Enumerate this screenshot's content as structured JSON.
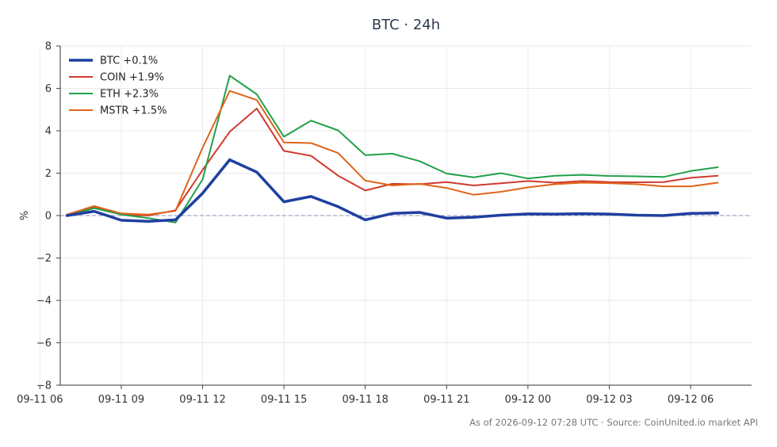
{
  "chart_data": {
    "type": "line",
    "title": "BTC · 24h",
    "xlabel": "",
    "ylabel": "%",
    "ylim": [
      -8,
      8
    ],
    "xlim": [
      "2026-09-11 06:45",
      "2026-09-12 08:15"
    ],
    "yticks": [
      -8,
      -6,
      -4,
      -2,
      0,
      2,
      4,
      6,
      8
    ],
    "ytick_labels": [
      "−8",
      "−6",
      "−4",
      "−2",
      "0",
      "2",
      "4",
      "6",
      "8"
    ],
    "xticks": [
      "2026-09-11 06:00",
      "2026-09-11 09:00",
      "2026-09-11 12:00",
      "2026-09-11 15:00",
      "2026-09-11 18:00",
      "2026-09-11 21:00",
      "2026-09-12 00:00",
      "2026-09-12 03:00",
      "2026-09-12 06:00"
    ],
    "xtick_labels": [
      "09-11 06",
      "09-11 09",
      "09-11 12",
      "09-11 15",
      "09-11 18",
      "09-11 21",
      "09-12 00",
      "09-12 03",
      "09-12 06"
    ],
    "grid": true,
    "zero_line": true,
    "legend_position": "top-left",
    "x": [
      "2026-09-11 07:00",
      "2026-09-11 08:00",
      "2026-09-11 09:00",
      "2026-09-11 10:00",
      "2026-09-11 11:00",
      "2026-09-11 12:00",
      "2026-09-11 13:00",
      "2026-09-11 14:00",
      "2026-09-11 15:00",
      "2026-09-11 16:00",
      "2026-09-11 17:00",
      "2026-09-11 18:00",
      "2026-09-11 19:00",
      "2026-09-11 20:00",
      "2026-09-11 21:00",
      "2026-09-11 22:00",
      "2026-09-11 23:00",
      "2026-09-12 00:00",
      "2026-09-12 01:00",
      "2026-09-12 02:00",
      "2026-09-12 03:00",
      "2026-09-12 04:00",
      "2026-09-12 05:00",
      "2026-09-12 06:00",
      "2026-09-12 07:00"
    ],
    "series": [
      {
        "name": "BTC",
        "legend": "BTC +0.1%",
        "color": "#1f3fa0",
        "width": 3.5,
        "values": [
          0.0,
          0.2,
          -0.22,
          -0.27,
          -0.2,
          1.05,
          2.63,
          2.05,
          0.65,
          0.9,
          0.42,
          -0.2,
          0.1,
          0.15,
          -0.12,
          -0.08,
          0.02,
          0.08,
          0.07,
          0.09,
          0.07,
          0.02,
          0.0,
          0.1,
          0.12
        ]
      },
      {
        "name": "COIN",
        "legend": "COIN +1.9%",
        "color": "#d03a30",
        "width": 2,
        "values": [
          0.0,
          0.42,
          0.05,
          0.0,
          0.25,
          2.15,
          3.95,
          5.05,
          3.05,
          2.82,
          1.88,
          1.18,
          1.5,
          1.48,
          1.58,
          1.42,
          1.52,
          1.63,
          1.55,
          1.63,
          1.58,
          1.57,
          1.58,
          1.78,
          1.88
        ]
      },
      {
        "name": "ETH",
        "legend": "ETH +2.3%",
        "color": "#22a04a",
        "width": 2,
        "values": [
          0.0,
          0.35,
          0.05,
          -0.12,
          -0.33,
          1.7,
          6.6,
          5.72,
          3.72,
          4.48,
          4.02,
          2.85,
          2.92,
          2.57,
          1.98,
          1.8,
          2.0,
          1.75,
          1.88,
          1.92,
          1.87,
          1.85,
          1.82,
          2.1,
          2.28
        ]
      },
      {
        "name": "MSTR",
        "legend": "MSTR +1.5%",
        "color": "#e06418",
        "width": 2,
        "values": [
          0.05,
          0.45,
          0.1,
          0.05,
          0.22,
          3.2,
          5.88,
          5.45,
          3.45,
          3.42,
          2.95,
          1.65,
          1.42,
          1.5,
          1.3,
          0.98,
          1.12,
          1.33,
          1.48,
          1.55,
          1.53,
          1.48,
          1.38,
          1.38,
          1.55
        ]
      }
    ]
  },
  "footer": {
    "note": "As of 2026-09-12 07:28 UTC · Source: CoinUnited.io market API"
  }
}
